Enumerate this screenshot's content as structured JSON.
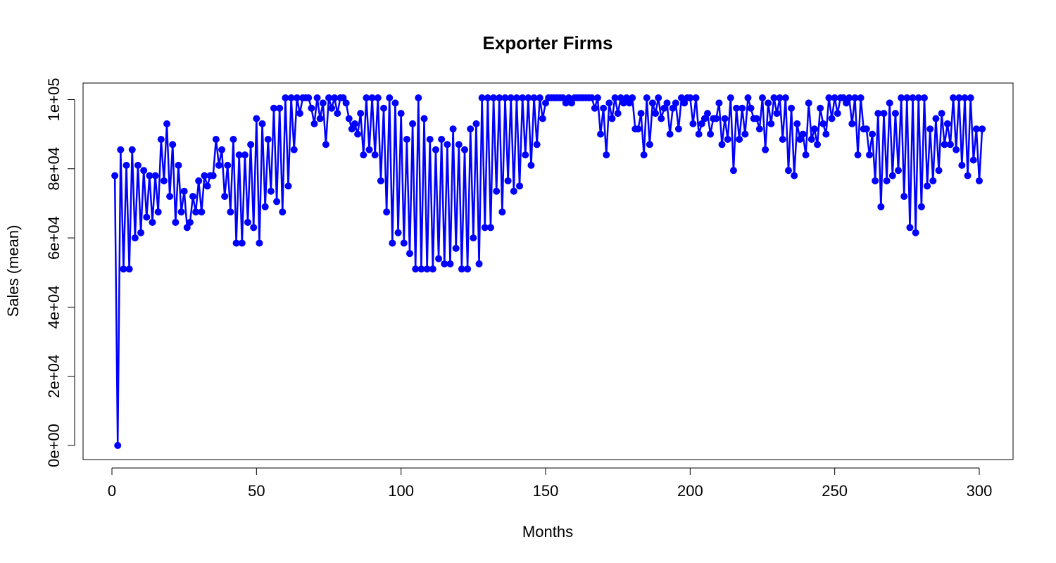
{
  "chart_data": {
    "type": "line",
    "title": "Exporter Firms",
    "xlabel": "Months",
    "ylabel": "Sales (mean)",
    "xlim": [
      1,
      300
    ],
    "ylim": [
      0,
      100500
    ],
    "x_ticks": [
      0,
      50,
      100,
      150,
      200,
      250,
      300
    ],
    "x_tick_labels": [
      "0",
      "50",
      "100",
      "150",
      "200",
      "250",
      "300"
    ],
    "y_ticks": [
      0,
      20000,
      40000,
      60000,
      80000,
      100000
    ],
    "y_tick_labels": [
      "0e+00",
      "2e+04",
      "4e+04",
      "6e+04",
      "8e+04",
      "1e+05"
    ],
    "grid": false,
    "legend": "none",
    "color": "#0000FF",
    "marker": "filled-circle",
    "series": [
      {
        "values": [
          78000,
          0,
          85500,
          51000,
          81000,
          51000,
          85500,
          60000,
          81000,
          61500,
          79500,
          66000,
          78000,
          64500,
          78000,
          67500,
          88500,
          76500,
          93000,
          72000,
          87000,
          64500,
          81000,
          67500,
          73500,
          63000,
          64500,
          72000,
          67500,
          76500,
          67500,
          78000,
          75000,
          78000,
          78000,
          88500,
          81000,
          85500,
          72000,
          81000,
          67500,
          88500,
          58500,
          84000,
          58500,
          84000,
          64500,
          87000,
          63000,
          94500,
          58500,
          93000,
          69000,
          88500,
          73500,
          97500,
          70500,
          97500,
          67500,
          100500,
          75000,
          100500,
          85500,
          100500,
          96000,
          100500,
          100500,
          100500,
          97500,
          93000,
          100500,
          94500,
          99000,
          87000,
          100500,
          97500,
          100500,
          96000,
          100500,
          100500,
          99000,
          94500,
          91500,
          93000,
          90000,
          96000,
          84000,
          100500,
          85500,
          100500,
          84000,
          100500,
          76500,
          97500,
          67500,
          100500,
          58500,
          99000,
          61500,
          96000,
          58500,
          88500,
          55500,
          93000,
          51000,
          100500,
          51000,
          94500,
          51000,
          88500,
          51000,
          85500,
          54000,
          88500,
          52500,
          87000,
          52500,
          91500,
          57000,
          87000,
          51000,
          85500,
          51000,
          91500,
          60000,
          93000,
          52500,
          100500,
          63000,
          100500,
          63000,
          100500,
          73500,
          100500,
          67500,
          100500,
          76500,
          100500,
          73500,
          100500,
          75000,
          100500,
          84000,
          100500,
          81000,
          100500,
          87000,
          100500,
          94500,
          99000,
          100500,
          100500,
          100500,
          100500,
          100500,
          100500,
          99000,
          100500,
          99000,
          100500,
          100500,
          100500,
          100500,
          100500,
          100500,
          100500,
          97500,
          100500,
          90000,
          97500,
          84000,
          99000,
          94500,
          100500,
          96000,
          100500,
          99000,
          100500,
          99000,
          100500,
          91500,
          91500,
          96000,
          84000,
          100500,
          87000,
          99000,
          96000,
          100500,
          94500,
          97500,
          99000,
          90000,
          97500,
          99000,
          91500,
          100500,
          99000,
          100500,
          100500,
          93000,
          100500,
          90000,
          93000,
          94500,
          96000,
          90000,
          94500,
          94500,
          99000,
          87000,
          94500,
          88500,
          100500,
          79500,
          97500,
          88500,
          97500,
          90000,
          100500,
          97500,
          94500,
          94500,
          91500,
          100500,
          85500,
          99000,
          93000,
          100500,
          96000,
          100500,
          88500,
          100500,
          79500,
          97500,
          78000,
          93000,
          88500,
          90000,
          84000,
          99000,
          88500,
          91500,
          87000,
          97500,
          93000,
          90000,
          100500,
          94500,
          100500,
          96000,
          100500,
          100500,
          99000,
          100500,
          93000,
          100500,
          84000,
          100500,
          91500,
          91500,
          84000,
          90000,
          76500,
          96000,
          69000,
          96000,
          76500,
          99000,
          78000,
          96000,
          79500,
          100500,
          72000,
          100500,
          63000,
          100500,
          61500,
          100500,
          69000,
          100500,
          75000,
          91500,
          76500,
          94500,
          79500,
          96000,
          87000,
          93000,
          87000,
          100500,
          85500,
          100500,
          81000,
          100500,
          78000,
          100500,
          82500,
          91500,
          76500,
          91500
        ]
      }
    ]
  }
}
